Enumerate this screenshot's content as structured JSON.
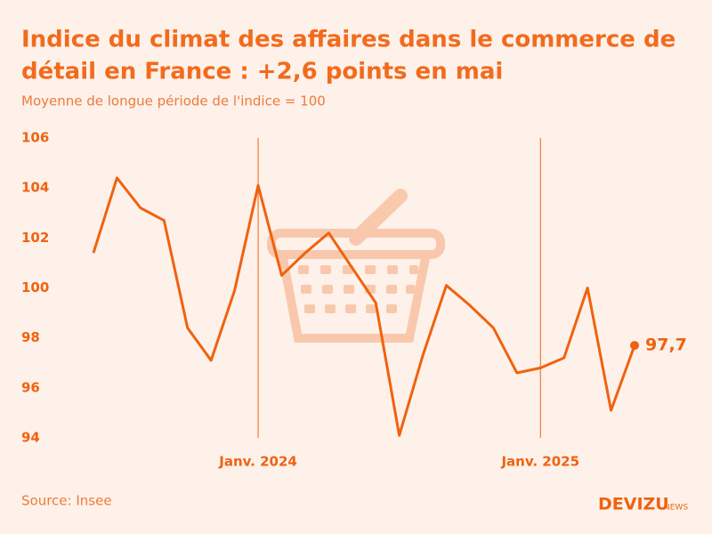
{
  "chart_data": {
    "type": "line",
    "title": [
      "Indice du climat des affaires dans le commerce de",
      "détail en France : +2,6 points en mai"
    ],
    "subtitle": "Moyenne de longue période de l'indice = 100",
    "source": "Source: Insee",
    "brand": [
      "DEVIZU",
      "NEWS"
    ],
    "categories": [
      null,
      null,
      null,
      null,
      null,
      null,
      null,
      "Janv. 2024",
      null,
      null,
      null,
      null,
      null,
      null,
      null,
      null,
      null,
      null,
      null,
      "Janv. 2025",
      null,
      null,
      null,
      null
    ],
    "series": [
      {
        "name": "Indice",
        "color": "#f0620f",
        "values": [
          101.4,
          104.4,
          103.2,
          102.7,
          98.4,
          97.1,
          99.9,
          104.1,
          100.5,
          101.4,
          102.2,
          100.8,
          99.4,
          94.1,
          97.3,
          100.1,
          99.3,
          98.4,
          96.6,
          96.8,
          97.2,
          100.0,
          95.1,
          97.7
        ],
        "value_labels": [
          null,
          null,
          null,
          null,
          null,
          null,
          null,
          null,
          null,
          null,
          null,
          null,
          null,
          null,
          null,
          null,
          null,
          null,
          null,
          null,
          null,
          null,
          null,
          "97,7"
        ]
      }
    ],
    "ylim": [
      94,
      106
    ],
    "yticks": [
      94,
      96,
      98,
      100,
      102,
      104,
      106
    ]
  }
}
